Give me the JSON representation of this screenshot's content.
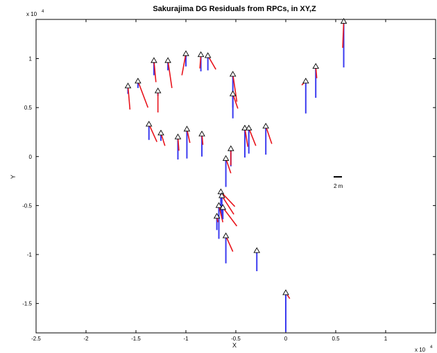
{
  "chart_data": {
    "type": "quiver",
    "title": "Sakurajima DG Residuals from RPCs, in XY,Z",
    "xlabel": "X",
    "ylabel": "Y",
    "x_exponent_label": "x 10",
    "x_exponent_power": "4",
    "y_exponent_label": "x 10",
    "y_exponent_power": "4",
    "xlim": [
      -2.5,
      1.5
    ],
    "ylim": [
      -1.8,
      1.4
    ],
    "xticks": [
      {
        "value": -2.5,
        "label": "-2.5"
      },
      {
        "value": -2,
        "label": "-2"
      },
      {
        "value": -1.5,
        "label": "-1.5"
      },
      {
        "value": -1,
        "label": "-1"
      },
      {
        "value": -0.5,
        "label": "-0.5"
      },
      {
        "value": 0,
        "label": "0"
      },
      {
        "value": 0.5,
        "label": "0.5"
      },
      {
        "value": 1,
        "label": "1"
      }
    ],
    "yticks": [
      {
        "value": 1,
        "label": "1"
      },
      {
        "value": 0.5,
        "label": "0.5"
      },
      {
        "value": 0,
        "label": "0"
      },
      {
        "value": -0.5,
        "label": "-0.5"
      },
      {
        "value": -1,
        "label": "-1"
      },
      {
        "value": -1.5,
        "label": "-1.5"
      }
    ],
    "grid": false,
    "legend": "none",
    "scale_bar_label": "2 m",
    "scale_bar_position": "right-middle",
    "colors": {
      "xy_residual": "#e8141c",
      "z_residual": "#3a3af0",
      "marker": "#000000",
      "axes": "#000000"
    },
    "points": [
      {
        "x": 0.58,
        "y": 1.38,
        "dx": -0.01,
        "dy": -0.27,
        "dz": -0.47
      },
      {
        "x": 0.3,
        "y": 0.92,
        "dx": 0.01,
        "dy": -0.12,
        "dz": -0.32
      },
      {
        "x": 0.2,
        "y": 0.77,
        "dx": -0.04,
        "dy": -0.04,
        "dz": -0.33
      },
      {
        "x": -1.58,
        "y": 0.72,
        "dx": 0.02,
        "dy": -0.24,
        "dz": -0.08
      },
      {
        "x": -1.48,
        "y": 0.77,
        "dx": 0.1,
        "dy": -0.27,
        "dz": -0.07
      },
      {
        "x": -1.32,
        "y": 0.98,
        "dx": 0.02,
        "dy": -0.22,
        "dz": -0.15
      },
      {
        "x": -1.28,
        "y": 0.67,
        "dx": 0.0,
        "dy": -0.22,
        "dz": -0.05
      },
      {
        "x": -1.18,
        "y": 0.98,
        "dx": 0.04,
        "dy": -0.28,
        "dz": -0.1
      },
      {
        "x": -1.0,
        "y": 1.05,
        "dx": -0.04,
        "dy": -0.22,
        "dz": -0.13
      },
      {
        "x": -0.85,
        "y": 1.04,
        "dx": -0.01,
        "dy": -0.14,
        "dz": -0.17
      },
      {
        "x": -0.78,
        "y": 1.03,
        "dx": 0.08,
        "dy": -0.14,
        "dz": -0.15
      },
      {
        "x": -0.53,
        "y": 0.84,
        "dx": 0.04,
        "dy": -0.28,
        "dz": -0.45
      },
      {
        "x": -0.53,
        "y": 0.64,
        "dx": 0.05,
        "dy": -0.15,
        "dz": -0.14
      },
      {
        "x": -1.37,
        "y": 0.33,
        "dx": 0.08,
        "dy": -0.18,
        "dz": -0.16
      },
      {
        "x": -1.25,
        "y": 0.24,
        "dx": 0.04,
        "dy": -0.13,
        "dz": -0.08
      },
      {
        "x": -1.08,
        "y": 0.2,
        "dx": 0.01,
        "dy": -0.14,
        "dz": -0.23
      },
      {
        "x": -0.99,
        "y": 0.28,
        "dx": 0.03,
        "dy": -0.14,
        "dz": -0.3
      },
      {
        "x": -0.84,
        "y": 0.23,
        "dx": 0.01,
        "dy": -0.11,
        "dz": -0.23
      },
      {
        "x": -0.41,
        "y": 0.29,
        "dx": 0.03,
        "dy": -0.19,
        "dz": -0.3
      },
      {
        "x": -0.37,
        "y": 0.29,
        "dx": 0.07,
        "dy": -0.18,
        "dz": -0.26
      },
      {
        "x": -0.2,
        "y": 0.31,
        "dx": 0.06,
        "dy": -0.18,
        "dz": -0.29
      },
      {
        "x": -0.55,
        "y": 0.08,
        "dx": 0.0,
        "dy": -0.17,
        "dz": -0.18
      },
      {
        "x": -0.6,
        "y": -0.02,
        "dx": 0.05,
        "dy": -0.15,
        "dz": -0.29
      },
      {
        "x": -0.65,
        "y": -0.36,
        "dx": 0.14,
        "dy": -0.15,
        "dz": -0.22
      },
      {
        "x": -0.64,
        "y": -0.4,
        "dx": 0.12,
        "dy": -0.19,
        "dz": -0.23
      },
      {
        "x": -0.67,
        "y": -0.5,
        "dx": 0.04,
        "dy": -0.17,
        "dz": -0.34
      },
      {
        "x": -0.63,
        "y": -0.52,
        "dx": 0.14,
        "dy": -0.19,
        "dz": -0.12
      },
      {
        "x": -0.69,
        "y": -0.61,
        "dx": 0.01,
        "dy": -0.06,
        "dz": -0.14
      },
      {
        "x": -0.6,
        "y": -0.81,
        "dx": 0.07,
        "dy": -0.16,
        "dz": -0.28
      },
      {
        "x": -0.29,
        "y": -0.96,
        "dx": 0.0,
        "dy": -0.02,
        "dz": -0.21
      },
      {
        "x": 0.0,
        "y": -1.39,
        "dx": 0.04,
        "dy": -0.06,
        "dz": -0.4
      }
    ]
  }
}
